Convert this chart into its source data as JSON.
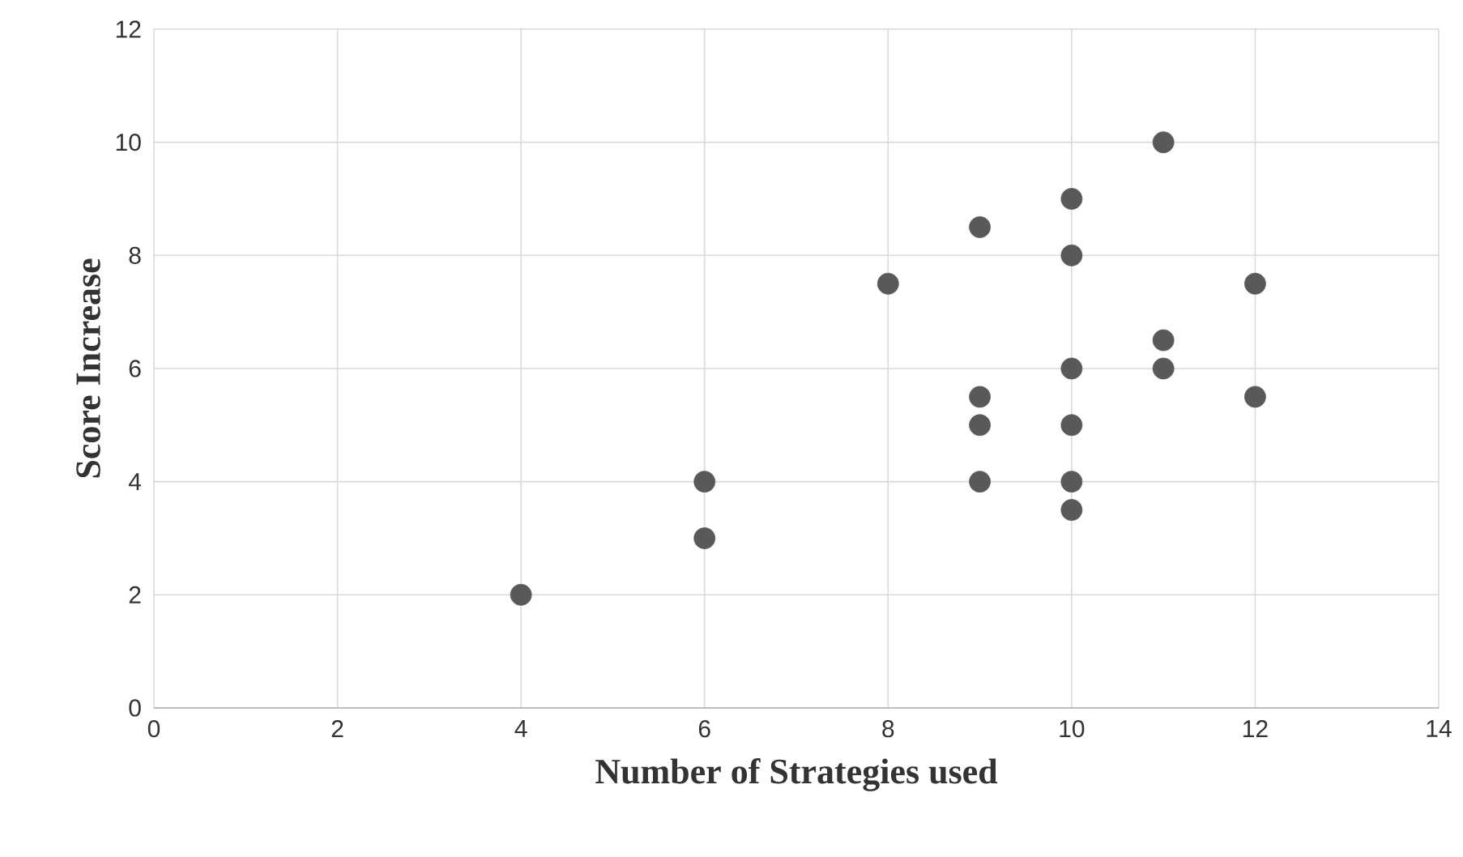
{
  "chart_data": {
    "type": "scatter",
    "xlabel": "Number of Strategies used",
    "ylabel": "Score Increase",
    "x": [
      4,
      6,
      6,
      8,
      9,
      9,
      9,
      9,
      10,
      10,
      10,
      10,
      10,
      10,
      11,
      11,
      11,
      12,
      12
    ],
    "values": [
      2,
      4,
      3,
      7.5,
      8.5,
      5.5,
      5,
      4,
      9,
      8,
      6,
      5,
      4,
      3.5,
      10,
      6.5,
      6,
      7.5,
      5.5
    ],
    "color": "#595959",
    "marker": "circle",
    "grid": true,
    "xlim": [
      0,
      14
    ],
    "xticks": [
      0,
      2,
      4,
      6,
      8,
      10,
      12,
      14
    ],
    "ylim": [
      0,
      12
    ],
    "yticks": [
      0,
      2,
      4,
      6,
      8,
      10,
      12
    ]
  }
}
